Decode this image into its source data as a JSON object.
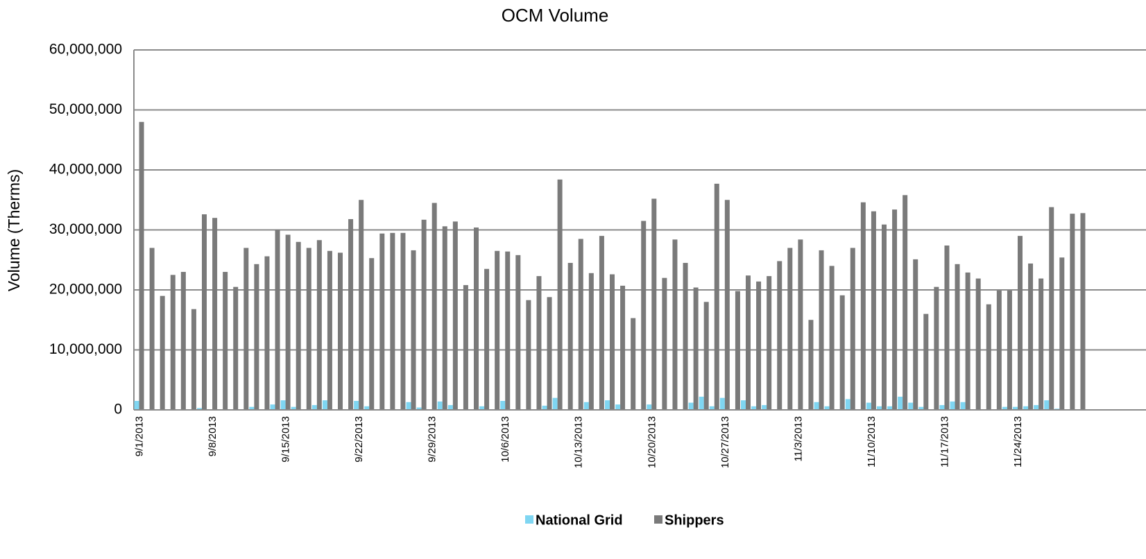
{
  "chart_data": {
    "type": "bar",
    "title": "OCM Volume",
    "y_label": "Volume (Therms)",
    "categories": [
      "9/1/2013",
      null,
      null,
      null,
      null,
      null,
      null,
      "9/8/2013",
      null,
      null,
      null,
      null,
      null,
      null,
      "9/15/2013",
      null,
      null,
      null,
      null,
      null,
      null,
      "9/22/2013",
      null,
      null,
      null,
      null,
      null,
      null,
      "9/29/2013",
      null,
      null,
      null,
      null,
      null,
      null,
      "10/6/2013",
      null,
      null,
      null,
      null,
      null,
      null,
      "10/13/2013",
      null,
      null,
      null,
      null,
      null,
      null,
      "10/20/2013",
      null,
      null,
      null,
      null,
      null,
      null,
      "10/27/2013",
      null,
      null,
      null,
      null,
      null,
      null,
      "11/3/2013",
      null,
      null,
      null,
      null,
      null,
      null,
      "11/10/2013",
      null,
      null,
      null,
      null,
      null,
      null,
      "11/17/2013",
      null,
      null,
      null,
      null,
      null,
      null,
      "11/24/2013",
      null,
      null,
      null,
      null,
      null,
      null
    ],
    "series": [
      {
        "name": "National Grid",
        "color": "#7fd6f2",
        "values": [
          1500000,
          0,
          0,
          0,
          0,
          0,
          300000,
          0,
          0,
          0,
          0,
          500000,
          0,
          900000,
          1600000,
          500000,
          0,
          800000,
          1600000,
          0,
          0,
          1500000,
          600000,
          0,
          0,
          0,
          1300000,
          400000,
          0,
          1400000,
          800000,
          0,
          0,
          600000,
          0,
          1500000,
          0,
          0,
          0,
          700000,
          2000000,
          0,
          0,
          1300000,
          0,
          1600000,
          900000,
          0,
          0,
          900000,
          0,
          0,
          0,
          1200000,
          2200000,
          600000,
          2000000,
          0,
          1600000,
          600000,
          800000,
          0,
          0,
          0,
          0,
          1300000,
          600000,
          0,
          1800000,
          0,
          1200000,
          600000,
          600000,
          2200000,
          1200000,
          500000,
          0,
          800000,
          1400000,
          1300000,
          0,
          0,
          0,
          500000,
          500000,
          600000,
          800000,
          1600000,
          200000,
          0,
          0
        ]
      },
      {
        "name": "Shippers",
        "color": "#7a7a7a",
        "values": [
          48000000,
          27000000,
          19000000,
          22500000,
          23000000,
          16800000,
          32600000,
          32000000,
          23000000,
          20500000,
          27000000,
          24300000,
          25600000,
          30000000,
          29200000,
          28000000,
          27000000,
          28300000,
          26500000,
          26200000,
          31800000,
          35000000,
          25300000,
          29400000,
          29500000,
          29500000,
          26600000,
          31700000,
          34500000,
          30600000,
          31400000,
          20800000,
          30400000,
          23500000,
          26500000,
          26400000,
          25800000,
          18300000,
          22300000,
          18800000,
          38400000,
          24500000,
          28500000,
          22800000,
          29000000,
          22600000,
          20700000,
          15300000,
          31500000,
          35200000,
          22000000,
          28400000,
          24500000,
          20400000,
          18000000,
          37700000,
          35000000,
          19800000,
          22400000,
          21400000,
          22300000,
          24800000,
          27000000,
          28400000,
          15000000,
          26600000,
          24000000,
          19100000,
          27000000,
          34600000,
          33100000,
          30900000,
          33400000,
          35800000,
          25100000,
          16000000,
          20500000,
          27400000,
          24300000,
          22900000,
          21900000,
          17600000,
          19900000,
          19900000,
          29000000,
          24400000,
          21900000,
          33800000,
          25400000,
          32700000,
          32800000
        ]
      }
    ],
    "ylim": [
      0,
      60000000
    ],
    "yticks": [
      0,
      {
        "value": 10000000,
        "label": "10,000,000"
      },
      {
        "value": 20000000,
        "label": "20,000,000"
      },
      {
        "value": 30000000,
        "label": "30,000,000"
      },
      {
        "value": 40000000,
        "label": "40,000,000"
      },
      {
        "value": 50000000,
        "label": "50,000,000"
      },
      {
        "value": 60000000,
        "label": "60,000,000"
      }
    ],
    "grid": true,
    "legend": "bottom"
  }
}
